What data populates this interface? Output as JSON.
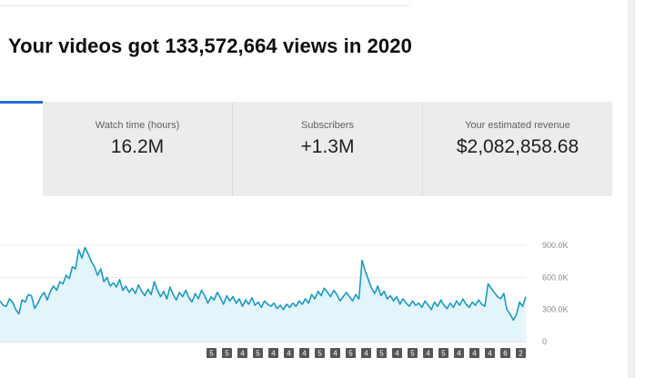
{
  "headline": "Your videos got 133,572,664 views in 2020",
  "metrics": [
    {
      "label": "Watch time (hours)",
      "value": "16.2M"
    },
    {
      "label": "Subscribers",
      "value": "+1.3M"
    },
    {
      "label": "Your estimated revenue",
      "value": "$2,082,858.68"
    }
  ],
  "colors": {
    "line": "#1a9bc4",
    "area": "#e3f4fa",
    "tab": "#1f6fd2",
    "marker": "#555555"
  },
  "chart_data": {
    "type": "area",
    "y_ticks": [
      "900.0K",
      "600.0K",
      "300.0K",
      "0"
    ],
    "ylim": [
      0,
      900000
    ],
    "grid": true,
    "views": [
      380000,
      340000,
      330000,
      400000,
      370000,
      300000,
      260000,
      390000,
      370000,
      440000,
      430000,
      310000,
      360000,
      420000,
      460000,
      390000,
      470000,
      520000,
      480000,
      560000,
      540000,
      620000,
      590000,
      700000,
      680000,
      860000,
      780000,
      880000,
      820000,
      750000,
      700000,
      620000,
      680000,
      560000,
      600000,
      520000,
      550000,
      510000,
      580000,
      480000,
      520000,
      460000,
      500000,
      450000,
      530000,
      470000,
      430000,
      490000,
      440000,
      560000,
      480000,
      420000,
      470000,
      400000,
      510000,
      440000,
      390000,
      460000,
      420000,
      480000,
      410000,
      370000,
      450000,
      400000,
      480000,
      430000,
      360000,
      420000,
      390000,
      460000,
      410000,
      350000,
      430000,
      380000,
      420000,
      360000,
      400000,
      330000,
      390000,
      350000,
      410000,
      340000,
      370000,
      320000,
      380000,
      350000,
      330000,
      360000,
      310000,
      340000,
      300000,
      350000,
      320000,
      360000,
      330000,
      380000,
      350000,
      400000,
      360000,
      440000,
      400000,
      470000,
      430000,
      500000,
      460000,
      420000,
      480000,
      440000,
      380000,
      420000,
      460000,
      420000,
      380000,
      440000,
      400000,
      760000,
      660000,
      580000,
      500000,
      450000,
      520000,
      430000,
      470000,
      400000,
      430000,
      380000,
      420000,
      350000,
      400000,
      360000,
      330000,
      380000,
      340000,
      360000,
      320000,
      380000,
      340000,
      300000,
      370000,
      330000,
      390000,
      340000,
      310000,
      360000,
      320000,
      380000,
      340000,
      400000,
      350000,
      320000,
      370000,
      340000,
      390000,
      350000,
      330000,
      540000,
      500000,
      460000,
      420000,
      400000,
      450000,
      300000,
      260000,
      200000,
      250000,
      370000,
      330000,
      420000
    ],
    "markers": [
      "5",
      "5",
      "4",
      "5",
      "4",
      "4",
      "4",
      "5",
      "4",
      "5",
      "4",
      "5",
      "4",
      "5",
      "4",
      "5",
      "4",
      "4",
      "4",
      "6",
      "2"
    ]
  }
}
